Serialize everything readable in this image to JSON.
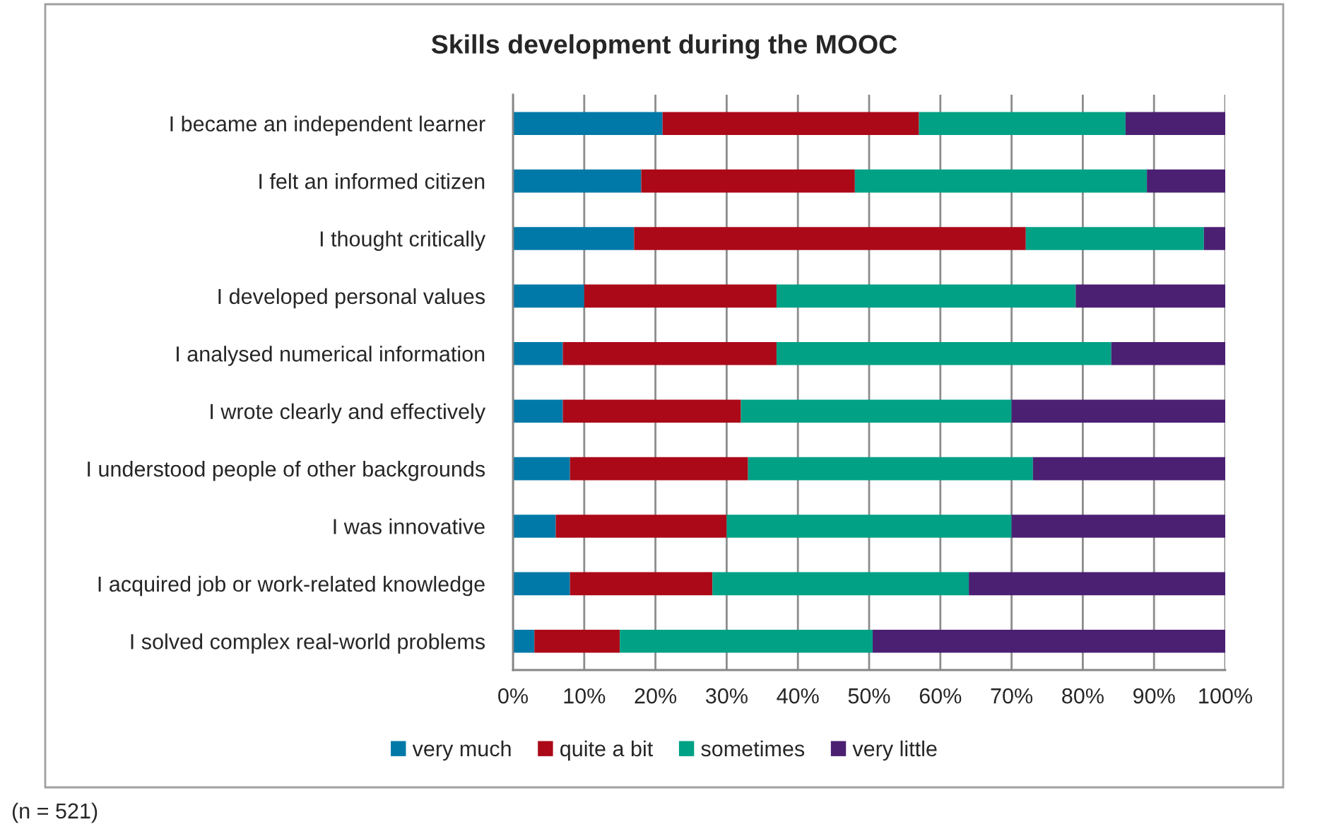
{
  "chart_data": {
    "type": "bar",
    "orientation": "horizontal",
    "stacked": true,
    "title": "Skills development during the MOOC",
    "categories": [
      "I became an independent learner",
      "I felt an informed citizen",
      "I thought critically",
      "I developed personal values",
      "I analysed numerical information",
      "I wrote clearly and effectively",
      "I understood people of other backgrounds",
      "I was innovative",
      "I acquired job or work-related knowledge",
      "I solved complex real-world problems"
    ],
    "series": [
      {
        "name": "very much",
        "color": "#0079a8",
        "values": [
          21,
          18,
          17,
          10,
          7,
          7,
          8,
          6,
          8,
          3
        ]
      },
      {
        "name": "quite a bit",
        "color": "#ab0918",
        "values": [
          36,
          30,
          55,
          27,
          30,
          25,
          25,
          24,
          20,
          12
        ]
      },
      {
        "name": "sometimes",
        "color": "#00a185",
        "values": [
          29,
          41,
          25,
          42,
          47,
          38,
          40,
          40,
          36,
          35.5
        ]
      },
      {
        "name": "very little",
        "color": "#4b2073",
        "values": [
          14,
          11,
          3,
          21,
          16,
          30,
          27,
          30,
          36,
          49.5
        ]
      }
    ],
    "xlim": [
      0,
      100
    ],
    "xticks": [
      {
        "value": 0,
        "label": "0%"
      },
      {
        "value": 10,
        "label": "10%"
      },
      {
        "value": 20,
        "label": "20%"
      },
      {
        "value": 30,
        "label": "30%"
      },
      {
        "value": 40,
        "label": "40%"
      },
      {
        "value": 50,
        "label": "50%"
      },
      {
        "value": 60,
        "label": "60%"
      },
      {
        "value": 70,
        "label": "70%"
      },
      {
        "value": 80,
        "label": "80%"
      },
      {
        "value": 90,
        "label": "90%"
      },
      {
        "value": 100,
        "label": "100%"
      }
    ],
    "grid": "x",
    "legend": "bottom",
    "annotations": [
      "(n = 521)"
    ]
  }
}
